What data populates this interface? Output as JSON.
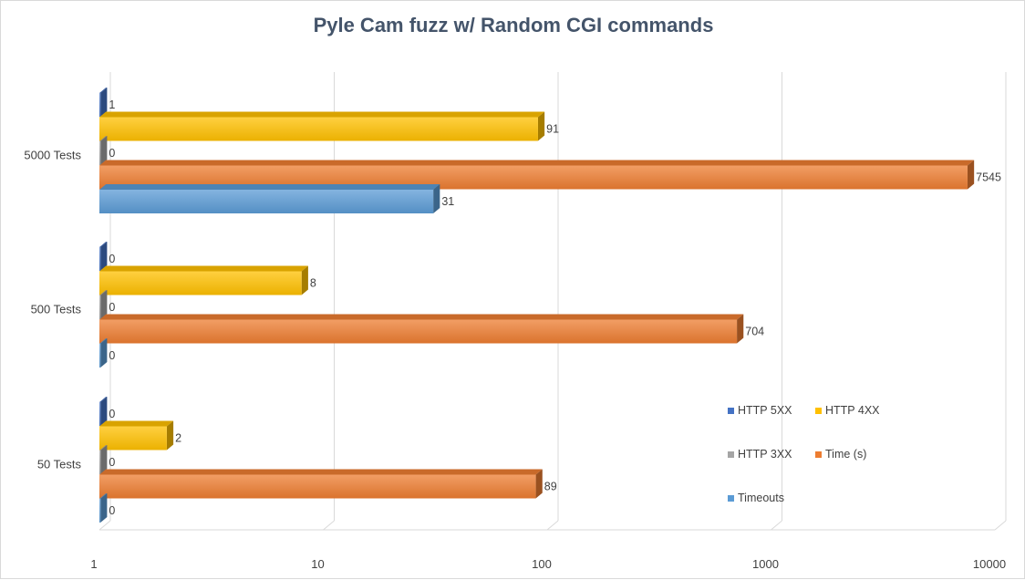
{
  "chart_data": {
    "type": "bar",
    "orientation": "horizontal",
    "style": "3d",
    "title": "Pyle Cam fuzz w/ Random CGI commands",
    "xscale": "log",
    "xlim": [
      1,
      10000
    ],
    "xticks": [
      "1",
      "10",
      "100",
      "1000",
      "10000"
    ],
    "categories": [
      "5000 Tests",
      "500 Tests",
      "50 Tests"
    ],
    "series": [
      {
        "name": "HTTP 5XX",
        "color": "#4472c4",
        "values": [
          1,
          0,
          0
        ]
      },
      {
        "name": "HTTP 4XX",
        "color": "#ffc000",
        "values": [
          91,
          8,
          2
        ]
      },
      {
        "name": "HTTP 3XX",
        "color": "#a5a5a5",
        "values": [
          0,
          0,
          0
        ]
      },
      {
        "name": "Time (s)",
        "color": "#ed7d31",
        "values": [
          7545,
          704,
          89
        ]
      },
      {
        "name": "Timeouts",
        "color": "#5b9bd5",
        "values": [
          31,
          0,
          0
        ]
      }
    ],
    "legend_position": "bottom-right",
    "grid": true
  }
}
